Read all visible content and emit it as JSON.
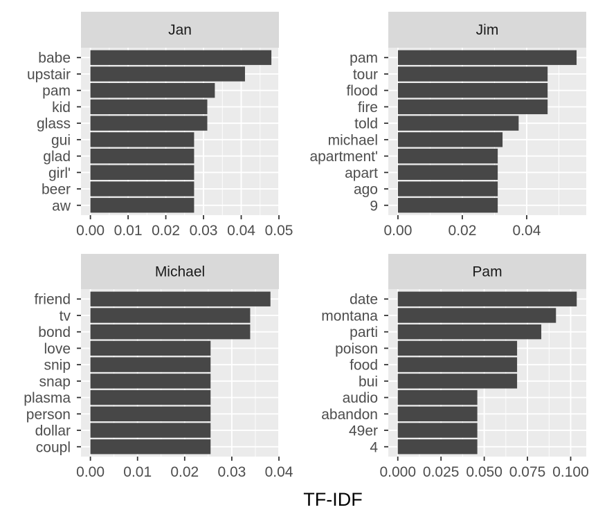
{
  "chart_data": {
    "type": "bar",
    "orientation": "horizontal",
    "xlabel": "TF-IDF",
    "ylabel": "",
    "grid": true,
    "colors": {
      "panel_background": "#ebebeb",
      "grid": "#ffffff",
      "strip_background": "#d9d9d9",
      "bar": "#474747"
    },
    "panels": [
      {
        "name": "Jan",
        "categories": [
          "babe",
          "upstair",
          "pam",
          "kid",
          "glass",
          "gui",
          "glad",
          "girl'",
          "beer",
          "aw"
        ],
        "values": [
          0.048,
          0.041,
          0.033,
          0.031,
          0.031,
          0.0275,
          0.0275,
          0.0275,
          0.0275,
          0.0275
        ],
        "xlim": [
          -0.0025,
          0.05
        ],
        "ticks": [
          0,
          0.01,
          0.02,
          0.03,
          0.04,
          0.05
        ],
        "tick_labels": [
          "0.00",
          "0.01",
          "0.02",
          "0.03",
          "0.04",
          "0.05"
        ]
      },
      {
        "name": "Jim",
        "categories": [
          "pam",
          "tour",
          "flood",
          "fire",
          "told",
          "michael",
          "apartment'",
          "apart",
          "ago",
          "9"
        ],
        "values": [
          0.0555,
          0.0465,
          0.0465,
          0.0465,
          0.0375,
          0.0325,
          0.031,
          0.031,
          0.031,
          0.031
        ],
        "xlim": [
          -0.003,
          0.0585
        ],
        "ticks": [
          0,
          0.02,
          0.04
        ],
        "tick_labels": [
          "0.00",
          "0.02",
          "0.04"
        ]
      },
      {
        "name": "Michael",
        "categories": [
          "friend",
          "tv",
          "bond",
          "love",
          "snip",
          "snap",
          "plasma",
          "person",
          "dollar",
          "coupl"
        ],
        "values": [
          0.0382,
          0.0339,
          0.0339,
          0.0255,
          0.0255,
          0.0255,
          0.0255,
          0.0255,
          0.0255,
          0.0255
        ],
        "xlim": [
          -0.002,
          0.04
        ],
        "ticks": [
          0,
          0.01,
          0.02,
          0.03,
          0.04
        ],
        "tick_labels": [
          "0.00",
          "0.01",
          "0.02",
          "0.03",
          "0.04"
        ]
      },
      {
        "name": "Pam",
        "categories": [
          "date",
          "montana",
          "parti",
          "poison",
          "food",
          "bui",
          "audio",
          "abandon",
          "49er",
          "4"
        ],
        "values": [
          0.1035,
          0.0915,
          0.083,
          0.069,
          0.069,
          0.069,
          0.046,
          0.046,
          0.046,
          0.046
        ],
        "xlim": [
          -0.0055,
          0.109
        ],
        "ticks": [
          0,
          0.025,
          0.05,
          0.075,
          0.1
        ],
        "tick_labels": [
          "0.000",
          "0.025",
          "0.050",
          "0.075",
          "0.100"
        ]
      }
    ]
  }
}
